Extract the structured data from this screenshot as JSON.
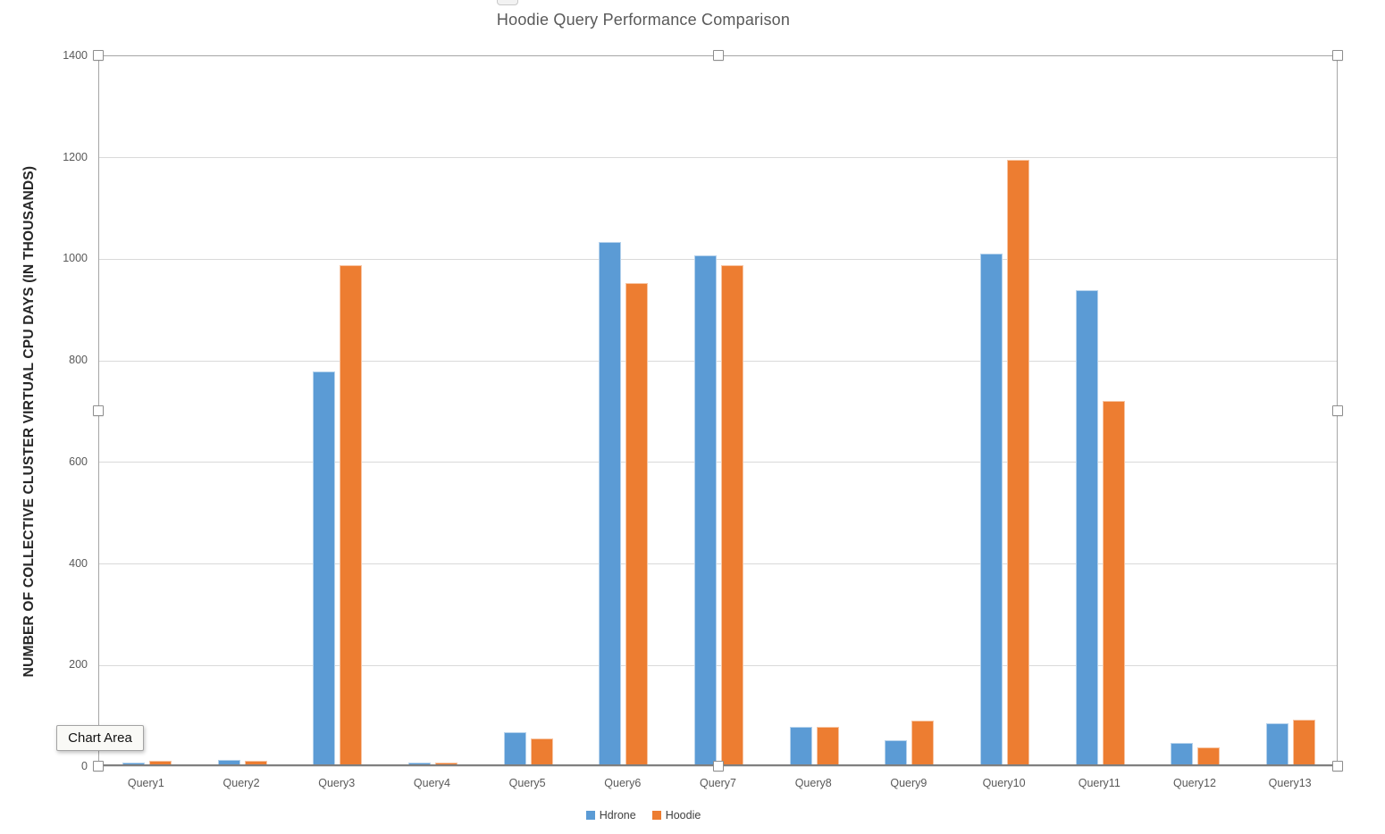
{
  "tooltip": {
    "label": "Chart Area"
  },
  "chart_data": {
    "type": "bar",
    "title": "Hoodie Query Performance Comparison",
    "xlabel": "",
    "ylabel": "NUMBER OF COLLECTIVE CLUSTER VIRTUAL CPU DAYS (IN THOUSANDS)",
    "categories": [
      "Query1",
      "Query2",
      "Query3",
      "Query4",
      "Query5",
      "Query6",
      "Query7",
      "Query8",
      "Query9",
      "Query10",
      "Query11",
      "Query12",
      "Query13"
    ],
    "series": [
      {
        "name": "Hdrone",
        "color": "#5B9BD5",
        "values": [
          5,
          11,
          775,
          5,
          65,
          1030,
          1005,
          75,
          49,
          1008,
          935,
          44,
          82
        ]
      },
      {
        "name": "Hoodie",
        "color": "#ED7D31",
        "values": [
          9,
          9,
          985,
          5,
          52,
          950,
          985,
          76,
          88,
          1193,
          718,
          35,
          89
        ]
      }
    ],
    "ylim": [
      0,
      1400
    ],
    "yticks": [
      0,
      200,
      400,
      600,
      800,
      1000,
      1200,
      1400
    ],
    "grid": true,
    "legend_position": "bottom"
  },
  "colors": {
    "series_blue": "#5B9BD5",
    "series_orange": "#ED7D31",
    "gridline": "#d9d9d9",
    "axis_text": "#595959",
    "title_text": "#595959",
    "y_axis_title_text": "#262626"
  }
}
